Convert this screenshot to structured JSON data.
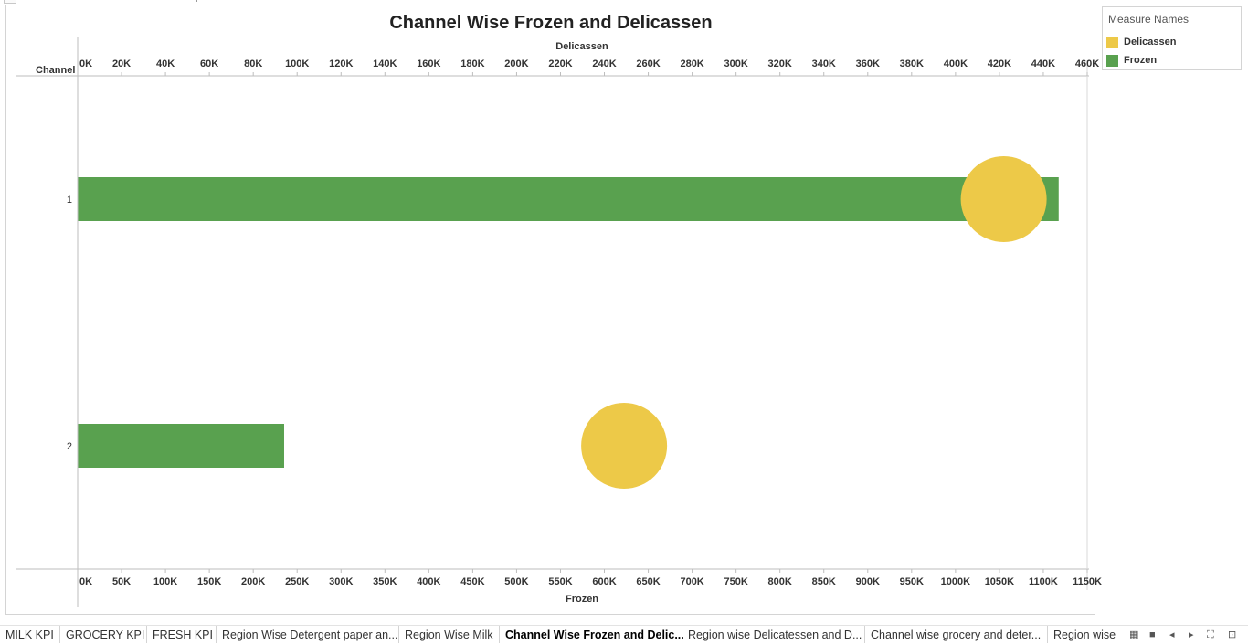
{
  "chart_data": {
    "type": "bar",
    "title": "Channel Wise Frozen and Delicassen",
    "row_header": "Channel",
    "categories": [
      "1",
      "2"
    ],
    "top_axis": {
      "label": "Delicassen",
      "ticks": [
        "0K",
        "20K",
        "40K",
        "60K",
        "80K",
        "100K",
        "120K",
        "140K",
        "160K",
        "180K",
        "200K",
        "220K",
        "240K",
        "260K",
        "280K",
        "300K",
        "320K",
        "340K",
        "360K",
        "380K",
        "400K",
        "420K",
        "440K",
        "460K"
      ],
      "range": [
        0,
        460000
      ]
    },
    "bottom_axis": {
      "label": "Frozen",
      "ticks": [
        "0K",
        "50K",
        "100K",
        "150K",
        "200K",
        "250K",
        "300K",
        "350K",
        "400K",
        "450K",
        "500K",
        "550K",
        "600K",
        "650K",
        "700K",
        "750K",
        "800K",
        "850K",
        "900K",
        "950K",
        "1000K",
        "1050K",
        "1100K",
        "1150K"
      ],
      "range": [
        0,
        1150000
      ]
    },
    "series": [
      {
        "name": "Frozen",
        "mark": "bar",
        "axis": "bottom",
        "color": "#59a14f",
        "values": [
          1116979,
          234671
        ]
      },
      {
        "name": "Delicassen",
        "mark": "circle",
        "axis": "top",
        "color": "#edc948",
        "values": [
          421955,
          248988
        ]
      }
    ],
    "grid": false
  },
  "legend": {
    "title": "Measure Names",
    "items": [
      {
        "label": "Delicassen",
        "color": "#edc948"
      },
      {
        "label": "Frozen",
        "color": "#59a14f"
      }
    ]
  },
  "tabs": [
    {
      "label": "MILK KPI",
      "active": false
    },
    {
      "label": "GROCERY KPI",
      "active": false
    },
    {
      "label": "FRESH KPI",
      "active": false
    },
    {
      "label": "Region Wise Detergent paper an...",
      "active": false
    },
    {
      "label": "Region Wise Milk",
      "active": false
    },
    {
      "label": "Channel Wise Frozen and Delic...",
      "active": true
    },
    {
      "label": "Region wise Delicatessen and D...",
      "active": false
    },
    {
      "label": "Channel wise grocery and deter...",
      "active": false
    },
    {
      "label": "Region wise",
      "active": false
    }
  ],
  "tab_tools": [
    {
      "icon": "filmstrip-icon",
      "glyph": "▦"
    },
    {
      "icon": "single-sheet-icon",
      "glyph": "■"
    },
    {
      "icon": "prev-tab-icon",
      "glyph": "◂"
    },
    {
      "icon": "next-tab-icon",
      "glyph": "▸"
    },
    {
      "icon": "fullscreen-icon",
      "glyph": "⛶"
    },
    {
      "icon": "presentation-icon",
      "glyph": "⊡"
    }
  ]
}
